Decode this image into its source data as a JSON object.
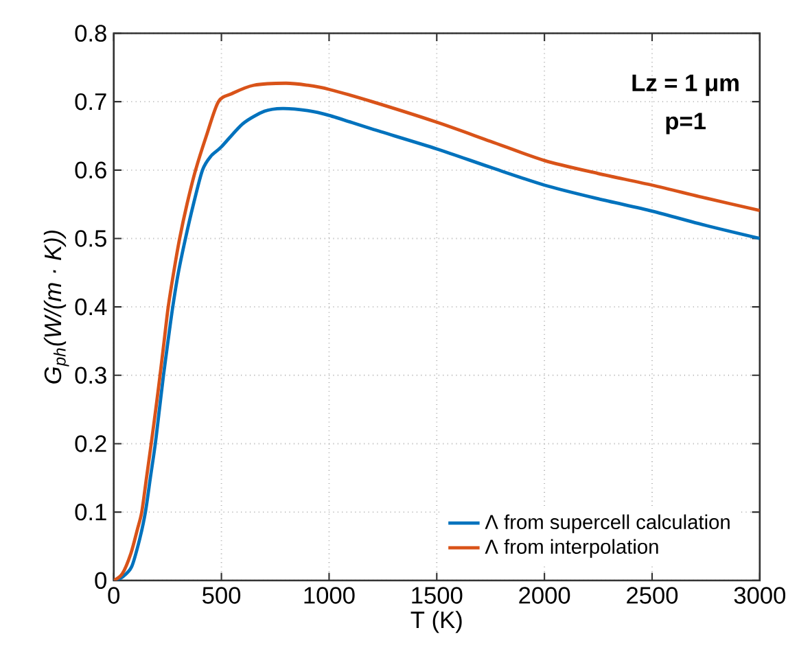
{
  "chart_data": {
    "type": "line",
    "xlabel": "T (K)",
    "ylabel": "G$_{ph}$(W/(m · K))",
    "annotations": [
      "Lz = 1 μm",
      "p=1"
    ],
    "xlim": [
      0,
      3000
    ],
    "ylim": [
      0,
      0.8
    ],
    "xticks": [
      0,
      500,
      1000,
      1500,
      2000,
      2500,
      3000
    ],
    "yticks": [
      0,
      0.1,
      0.2,
      0.3,
      0.4,
      0.5,
      0.6,
      0.7,
      0.8
    ],
    "grid": true,
    "legend": "bottom right",
    "line_style": "solid",
    "marker": "none",
    "series": [
      {
        "name": "Λ from supercell calculation",
        "color": "#0072bd",
        "x": [
          0,
          40,
          83,
          120,
          147,
          170,
          193,
          212,
          231,
          252,
          274,
          300,
          333,
          370,
          412,
          450,
          500,
          600,
          700,
          783,
          900,
          1000,
          1200,
          1500,
          1750,
          2000,
          2250,
          2500,
          2750,
          3000
        ],
        "values": [
          0,
          0.005,
          0.02,
          0.06,
          0.1,
          0.15,
          0.2,
          0.25,
          0.3,
          0.35,
          0.4,
          0.45,
          0.5,
          0.55,
          0.6,
          0.62,
          0.634,
          0.668,
          0.686,
          0.69,
          0.687,
          0.68,
          0.66,
          0.631,
          0.604,
          0.578,
          0.558,
          0.54,
          0.519,
          0.5
        ]
      },
      {
        "name": "Λ from interpolation",
        "color": "#d95319",
        "x": [
          0,
          40,
          80,
          110,
          130,
          152,
          174,
          195,
          215,
          234,
          253,
          278,
          306,
          340,
          380,
          430,
          486,
          550,
          650,
          800,
          900,
          1000,
          1200,
          1500,
          1750,
          2000,
          2250,
          2500,
          2750,
          3000
        ],
        "values": [
          0,
          0.01,
          0.04,
          0.075,
          0.1,
          0.15,
          0.2,
          0.25,
          0.3,
          0.35,
          0.4,
          0.45,
          0.5,
          0.55,
          0.6,
          0.65,
          0.7,
          0.712,
          0.724,
          0.727,
          0.724,
          0.718,
          0.7,
          0.67,
          0.642,
          0.614,
          0.595,
          0.578,
          0.559,
          0.541
        ]
      }
    ]
  }
}
